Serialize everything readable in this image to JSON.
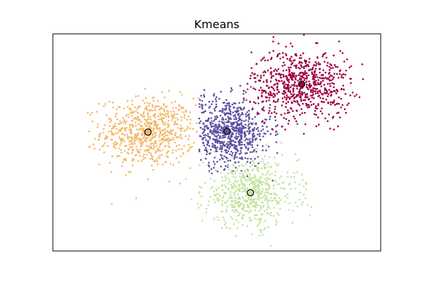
{
  "chart_data": {
    "type": "scatter",
    "title": "Kmeans",
    "xlabel": "",
    "ylabel": "",
    "axes_ticks": "none",
    "grid": false,
    "clusters": [
      {
        "color": "#f4b96a",
        "centroid": [
          -2.75,
          0.0
        ],
        "spread": [
          0.8,
          0.75
        ],
        "n": 700,
        "x_range": [
          -5.0,
          -1.0
        ]
      },
      {
        "color": "#5e4fa2",
        "centroid": [
          -0.05,
          0.04
        ],
        "spread": [
          0.75,
          0.75
        ],
        "n": 700,
        "x_range": [
          -1.0,
          2.4
        ]
      },
      {
        "color": "#9e0142",
        "centroid": [
          2.5,
          2.1
        ],
        "spread": [
          0.85,
          0.75
        ],
        "n": 700,
        "x_range": [
          0.3,
          4.6
        ]
      },
      {
        "color": "#c2e4a0",
        "centroid": [
          0.75,
          -2.65
        ],
        "spread": [
          0.8,
          0.75
        ],
        "n": 600,
        "x_range": [
          -1.5,
          3.0
        ]
      }
    ],
    "centroids": [
      {
        "x": -2.75,
        "y": 0.0,
        "color": "#f4b96a"
      },
      {
        "x": -0.05,
        "y": 0.04,
        "color": "#5e4fa2"
      },
      {
        "x": 2.5,
        "y": 2.1,
        "color": "#9e0142"
      },
      {
        "x": 0.75,
        "y": -2.65,
        "color": "#c2e4a0"
      }
    ],
    "xlim": [
      -6.0,
      5.2
    ],
    "ylim": [
      -5.2,
      4.3
    ]
  }
}
